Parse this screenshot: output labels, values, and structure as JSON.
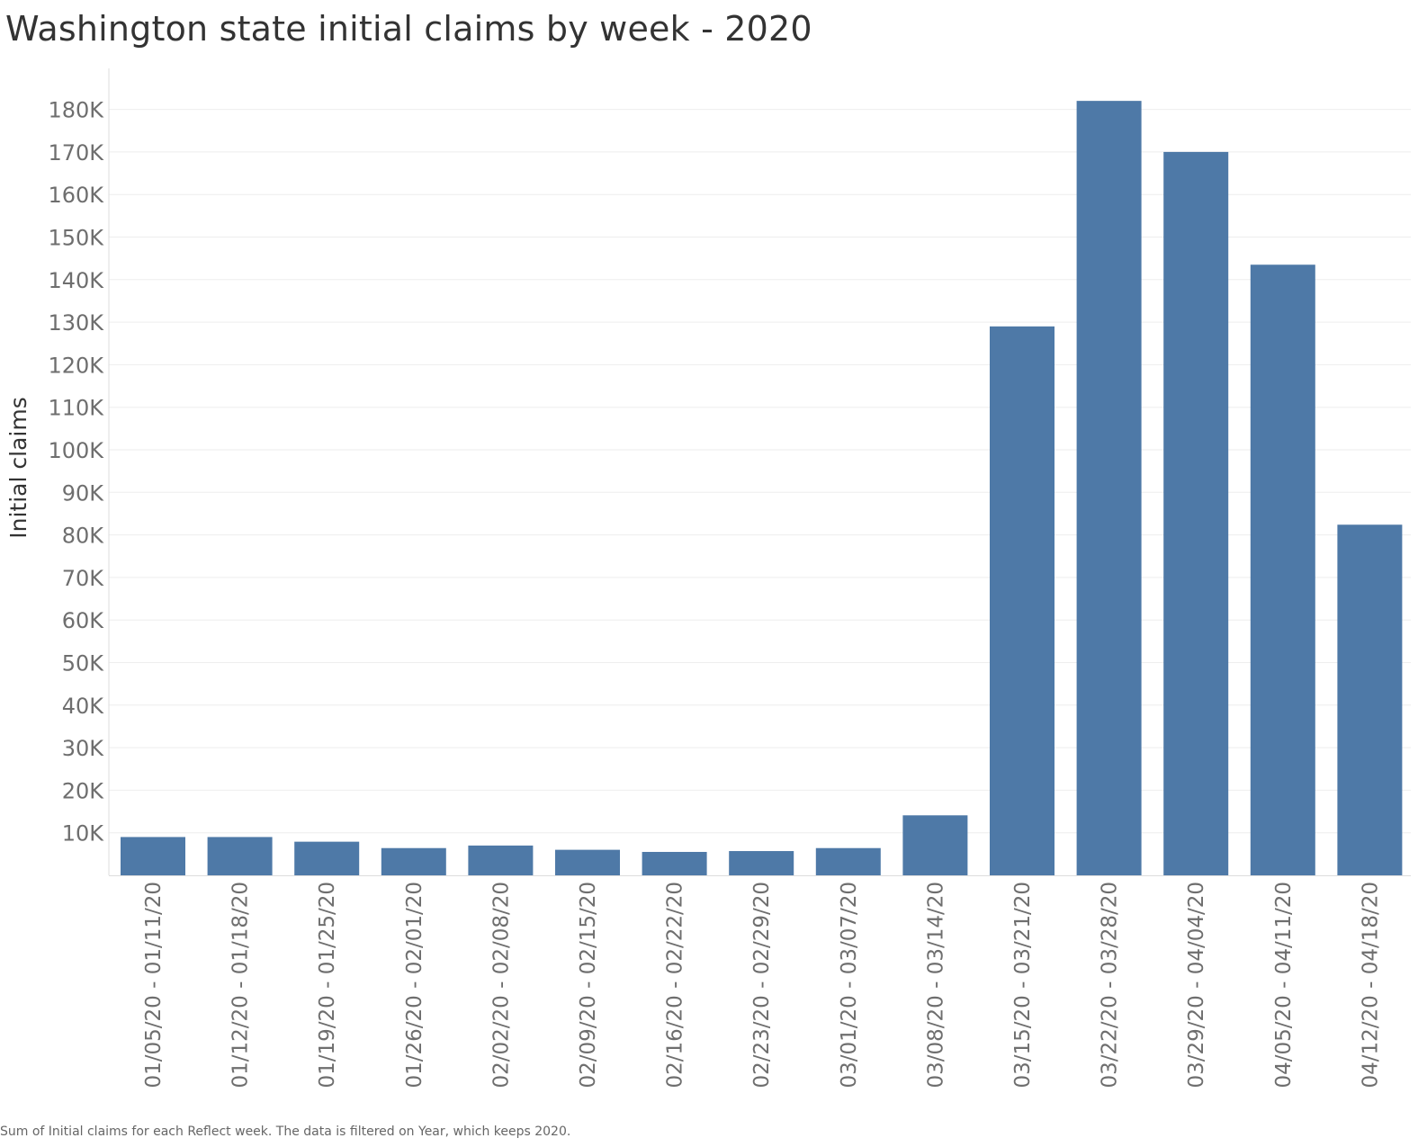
{
  "title": "Washington state initial claims by week - 2020",
  "footnote": "Sum of Initial claims for each Reflect week. The data is filtered on Year, which keeps 2020.",
  "colors": {
    "bar": "#4e79a7",
    "gridline": "#eeeeee",
    "axis_line": "#dddddd"
  },
  "chart_data": {
    "type": "bar",
    "title": "Washington state initial claims by week - 2020",
    "xlabel": "",
    "ylabel": "Initial claims",
    "ylim": [
      0,
      190000
    ],
    "grid": true,
    "yticks": [
      10000,
      20000,
      30000,
      40000,
      50000,
      60000,
      70000,
      80000,
      90000,
      100000,
      110000,
      120000,
      130000,
      140000,
      150000,
      160000,
      170000,
      180000
    ],
    "ytick_labels": [
      "10K",
      "20K",
      "30K",
      "40K",
      "50K",
      "60K",
      "70K",
      "80K",
      "90K",
      "100K",
      "110K",
      "120K",
      "130K",
      "140K",
      "150K",
      "160K",
      "170K",
      "180K"
    ],
    "categories": [
      "01/05/20 - 01/11/20",
      "01/12/20 - 01/18/20",
      "01/19/20 - 01/25/20",
      "01/26/20 - 02/01/20",
      "02/02/20 - 02/08/20",
      "02/09/20 - 02/15/20",
      "02/16/20 - 02/22/20",
      "02/23/20 - 02/29/20",
      "03/01/20 - 03/07/20",
      "03/08/20 - 03/14/20",
      "03/15/20 - 03/21/20",
      "03/22/20 - 03/28/20",
      "03/29/20 - 04/04/20",
      "04/05/20 - 04/11/20",
      "04/12/20 - 04/18/20"
    ],
    "values": [
      9000,
      9000,
      7900,
      6400,
      7000,
      6000,
      5500,
      5700,
      6400,
      14100,
      129000,
      182000,
      170000,
      143500,
      82400
    ]
  }
}
